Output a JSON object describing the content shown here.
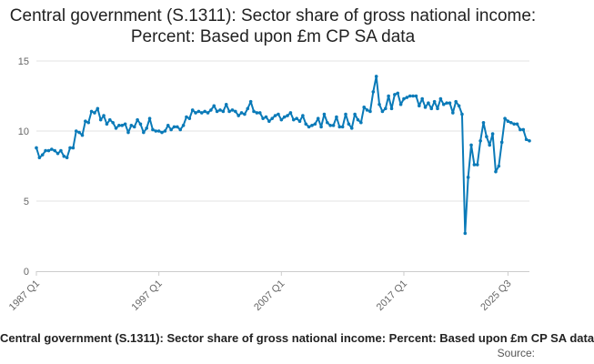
{
  "chart_data": {
    "type": "line",
    "title": "Central government (S.1311): Sector share of gross national income: Percent: Based upon £m CP SA data",
    "caption": "Central government (S.1311): Sector share of gross national income: Percent: Based upon £m CP SA data",
    "source_label": "Source:",
    "xlabel": "",
    "ylabel": "",
    "ylim": [
      0,
      15
    ],
    "yticks": [
      0,
      5,
      10,
      15
    ],
    "grid": true,
    "x_ticks": [
      "1987 Q1",
      "1997 Q1",
      "2007 Q1",
      "2017 Q1",
      "2025 Q3"
    ],
    "series": [
      {
        "color": "#0a7ab8",
        "x_start": "1987 Q1",
        "values": [
          8.8,
          8.1,
          8.3,
          8.6,
          8.6,
          8.7,
          8.6,
          8.4,
          8.6,
          8.2,
          8.1,
          8.8,
          8.8,
          10.0,
          9.9,
          9.7,
          10.7,
          10.6,
          11.4,
          11.3,
          11.6,
          10.8,
          11.1,
          10.5,
          10.8,
          10.6,
          10.2,
          10.4,
          10.4,
          10.5,
          9.9,
          10.4,
          10.3,
          10.8,
          10.5,
          9.9,
          10.2,
          10.9,
          10.1,
          10.0,
          10.0,
          9.9,
          10.0,
          10.4,
          10.1,
          10.3,
          10.3,
          10.1,
          10.4,
          11.0,
          10.9,
          11.5,
          11.3,
          11.4,
          11.3,
          11.4,
          11.3,
          11.5,
          11.8,
          11.4,
          11.5,
          11.4,
          11.9,
          11.4,
          11.5,
          11.4,
          11.1,
          11.3,
          11.2,
          11.6,
          12.1,
          11.4,
          11.3,
          11.3,
          10.9,
          11.0,
          10.7,
          10.9,
          11.1,
          11.2,
          10.8,
          11.0,
          11.1,
          11.3,
          10.8,
          10.9,
          10.7,
          11.1,
          10.5,
          10.3,
          10.4,
          10.5,
          10.9,
          10.3,
          11.2,
          10.6,
          10.4,
          10.4,
          11.0,
          10.3,
          10.3,
          11.2,
          10.5,
          10.2,
          11.2,
          10.8,
          10.6,
          11.7,
          11.5,
          11.4,
          12.8,
          13.9,
          11.9,
          11.4,
          11.6,
          12.5,
          11.6,
          12.6,
          12.7,
          11.9,
          12.3,
          12.4,
          12.5,
          12.5,
          12.5,
          11.8,
          12.3,
          11.7,
          12.0,
          11.6,
          12.1,
          11.6,
          12.3,
          11.9,
          12.0,
          12.0,
          11.3,
          12.1,
          11.8,
          11.2,
          2.7,
          6.7,
          9.0,
          7.6,
          7.6,
          9.3,
          10.6,
          9.6,
          9.0,
          9.8,
          7.1,
          7.5,
          9.2,
          10.9,
          10.7,
          10.6,
          10.5,
          10.5,
          10.1,
          10.1,
          9.4,
          9.3
        ]
      }
    ]
  }
}
